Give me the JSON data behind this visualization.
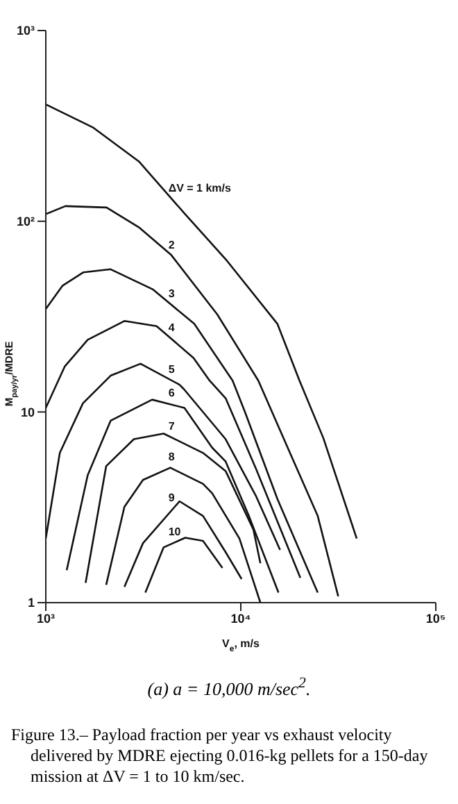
{
  "chart_data": {
    "type": "line",
    "title": "Figure 13.– Payload fraction per year vs exhaust velocity delivered by MDRE ejecting 0.016-kg pellets for a 150-day mission at ΔV = 1 to 10 km/sec.",
    "subtitle": "(a) a = 10,000 m/sec$^{2}$.",
    "xlabel": "V$_{e}$, m/s",
    "ylabel": "M$_{pay/yr}$/MDRE",
    "log": "xy",
    "xlim": [
      1000,
      100000
    ],
    "xticks": [
      {
        "value": 1000,
        "label": "10³"
      },
      {
        "value": 10000,
        "label": "10⁴"
      },
      {
        "value": 100000,
        "label": "10⁵"
      }
    ],
    "ylim": [
      1,
      1000
    ],
    "yticks": [
      1,
      10,
      {
        "value": 100,
        "label": "10²"
      },
      {
        "value": 1000,
        "label": "10³"
      }
    ],
    "grid": false,
    "marker": "none",
    "line_style": "solid",
    "series": [
      {
        "name": "ΔV = 1 km/s",
        "color": "#111111",
        "x": [
          1000,
          1740,
          3000,
          5180,
          8500,
          15400,
          20000,
          26500,
          39300
        ],
        "values": [
          410,
          311,
          206,
          109,
          62,
          29,
          14.6,
          7.3,
          2.17
        ]
      },
      {
        "name": "2",
        "color": "#111111",
        "x": [
          1000,
          1260,
          2050,
          3000,
          4400,
          7570,
          12300,
          18000,
          24800,
          31600
        ],
        "values": [
          109,
          120,
          118,
          93,
          66.5,
          32.5,
          14.6,
          6,
          2.85,
          1.08
        ]
      },
      {
        "name": "3",
        "color": "#111111",
        "x": [
          1000,
          1220,
          1560,
          2150,
          3530,
          5770,
          9080,
          10500,
          15400,
          24800
        ],
        "values": [
          34.7,
          46,
          54,
          56,
          44,
          29,
          14.6,
          10,
          3.5,
          1.13
        ]
      },
      {
        "name": "4",
        "color": "#111111",
        "x": [
          1000,
          1250,
          1640,
          2530,
          3700,
          5720,
          6920,
          8360,
          12000,
          20200
        ],
        "values": [
          10.5,
          17.3,
          23.9,
          30,
          28.2,
          19.2,
          14.6,
          11.8,
          5,
          1.35
        ]
      },
      {
        "name": "5",
        "color": "#111111",
        "x": [
          1000,
          1180,
          1550,
          2150,
          3060,
          4850,
          5100,
          8360,
          12000,
          15900
        ],
        "values": [
          2.17,
          6.1,
          11.1,
          15.5,
          17.9,
          13.9,
          13.2,
          7.2,
          3.6,
          1.89
        ]
      },
      {
        "name": "6",
        "color": "#111111",
        "x": [
          1280,
          1640,
          2150,
          3510,
          5140,
          7130,
          8360,
          11000,
          15600
        ],
        "values": [
          1.48,
          4.66,
          9,
          11.6,
          10.5,
          6.5,
          5.5,
          2.85,
          1.13
        ]
      },
      {
        "name": "7",
        "color": "#111111",
        "x": [
          1600,
          2040,
          2830,
          4020,
          6400,
          8360,
          11600,
          12600
        ],
        "values": [
          1.27,
          5.2,
          7.2,
          7.7,
          6.1,
          4.9,
          2.42,
          1.61
        ]
      },
      {
        "name": "8",
        "color": "#111111",
        "x": [
          2040,
          2530,
          3150,
          4350,
          6400,
          7130,
          9840,
          12600
        ],
        "values": [
          1.24,
          3.18,
          4.4,
          5.1,
          4.2,
          3.75,
          2.17,
          1
        ]
      },
      {
        "name": "9",
        "color": "#111111",
        "x": [
          2530,
          3150,
          4850,
          6400,
          8360,
          10100
        ],
        "values": [
          1.21,
          2.05,
          3.4,
          2.85,
          1.84,
          1.33
        ]
      },
      {
        "name": "10",
        "color": "#111111",
        "x": [
          3240,
          4020,
          5190,
          6400,
          8050
        ],
        "values": [
          1.13,
          1.95,
          2.19,
          2.11,
          1.52
        ]
      }
    ]
  }
}
